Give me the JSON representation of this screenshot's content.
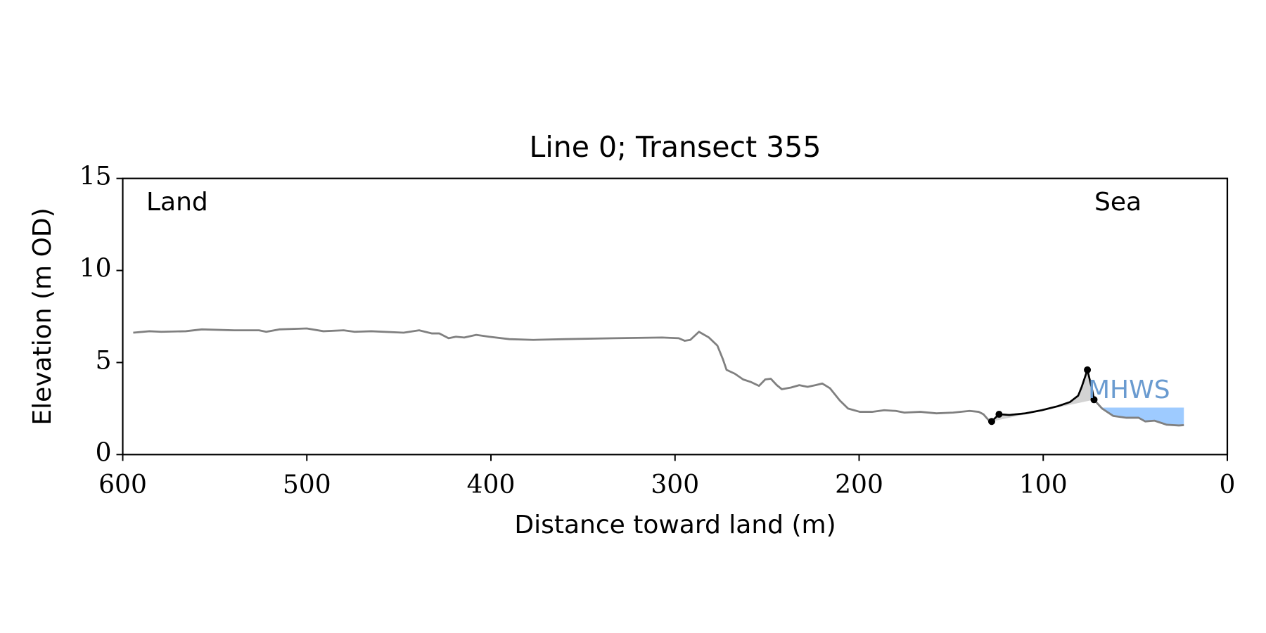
{
  "chart_data": {
    "type": "line",
    "title": "Line 0; Transect 355",
    "xlabel": "Distance toward land (m)",
    "ylabel": "Elevation (m OD)",
    "xlim": [
      600,
      0
    ],
    "ylim": [
      0,
      15
    ],
    "xticks": [
      600,
      500,
      400,
      300,
      200,
      100,
      0
    ],
    "yticks": [
      0,
      5,
      10,
      15
    ],
    "annotations": [
      {
        "text": "Land",
        "side": "left"
      },
      {
        "text": "Sea",
        "side": "right"
      }
    ],
    "series": [
      {
        "color": "#808080",
        "x": [
          594.3,
          585.5,
          579,
          565.8,
          557,
          539.5,
          526,
          522,
          515,
          500,
          491,
          480,
          474,
          465,
          447.4,
          439,
          432,
          428,
          423,
          419,
          414.5,
          408,
          401,
          390,
          377,
          359.6,
          333,
          307,
          298,
          294.7,
          291.7,
          287,
          281.6,
          277,
          274,
          272,
          267.5,
          263,
          259,
          254.4,
          251,
          248,
          244.7,
          242,
          237,
          232.5,
          228,
          223.7,
          220,
          215.8,
          210.5,
          206,
          199.6,
          193,
          186.4,
          180,
          175.4,
          166.7,
          158,
          149,
          140,
          135,
          132.5,
          129.4,
          128,
          124,
          118.4,
          109.6,
          100.8,
          92,
          85.5,
          81,
          79,
          76,
          73.4,
          72.4,
          68,
          62,
          54.8,
          48.2,
          44.6,
          39.5,
          32.9,
          26.3,
          23.6
        ],
        "values": [
          6.62,
          6.7,
          6.67,
          6.7,
          6.8,
          6.75,
          6.75,
          6.67,
          6.8,
          6.85,
          6.7,
          6.75,
          6.67,
          6.7,
          6.62,
          6.75,
          6.58,
          6.58,
          6.32,
          6.4,
          6.36,
          6.5,
          6.4,
          6.27,
          6.23,
          6.27,
          6.32,
          6.36,
          6.32,
          6.18,
          6.23,
          6.67,
          6.36,
          5.92,
          5.18,
          4.6,
          4.39,
          4.08,
          3.95,
          3.73,
          4.08,
          4.12,
          3.77,
          3.55,
          3.64,
          3.77,
          3.68,
          3.77,
          3.86,
          3.6,
          2.94,
          2.5,
          2.32,
          2.32,
          2.41,
          2.37,
          2.28,
          2.32,
          2.24,
          2.28,
          2.37,
          2.32,
          2.19,
          1.84,
          1.8,
          2.19,
          2.15,
          2.24,
          2.41,
          2.63,
          2.85,
          3.2,
          3.7,
          4.6,
          3.5,
          2.98,
          2.5,
          2.1,
          2.0,
          2.0,
          1.8,
          1.84,
          1.62,
          1.58,
          1.6
        ]
      },
      {
        "color": "#000000",
        "fill": "#d3d3d3",
        "x": [
          128,
          124,
          118.4,
          109.6,
          100.8,
          92,
          85.5,
          81,
          79,
          76,
          73.4,
          72.4
        ],
        "values": [
          1.8,
          2.19,
          2.15,
          2.24,
          2.41,
          2.63,
          2.85,
          3.2,
          3.7,
          4.6,
          3.5,
          2.98
        ]
      }
    ],
    "points": {
      "color": "#000000",
      "x": [
        128,
        124,
        76,
        72.4
      ],
      "values": [
        1.8,
        2.19,
        4.6,
        2.98
      ]
    },
    "mhws": {
      "label": "MHWS",
      "level": 2.55,
      "x_from": 68,
      "fill": "#9ecbff",
      "text_color": "#6a9bd0"
    }
  }
}
